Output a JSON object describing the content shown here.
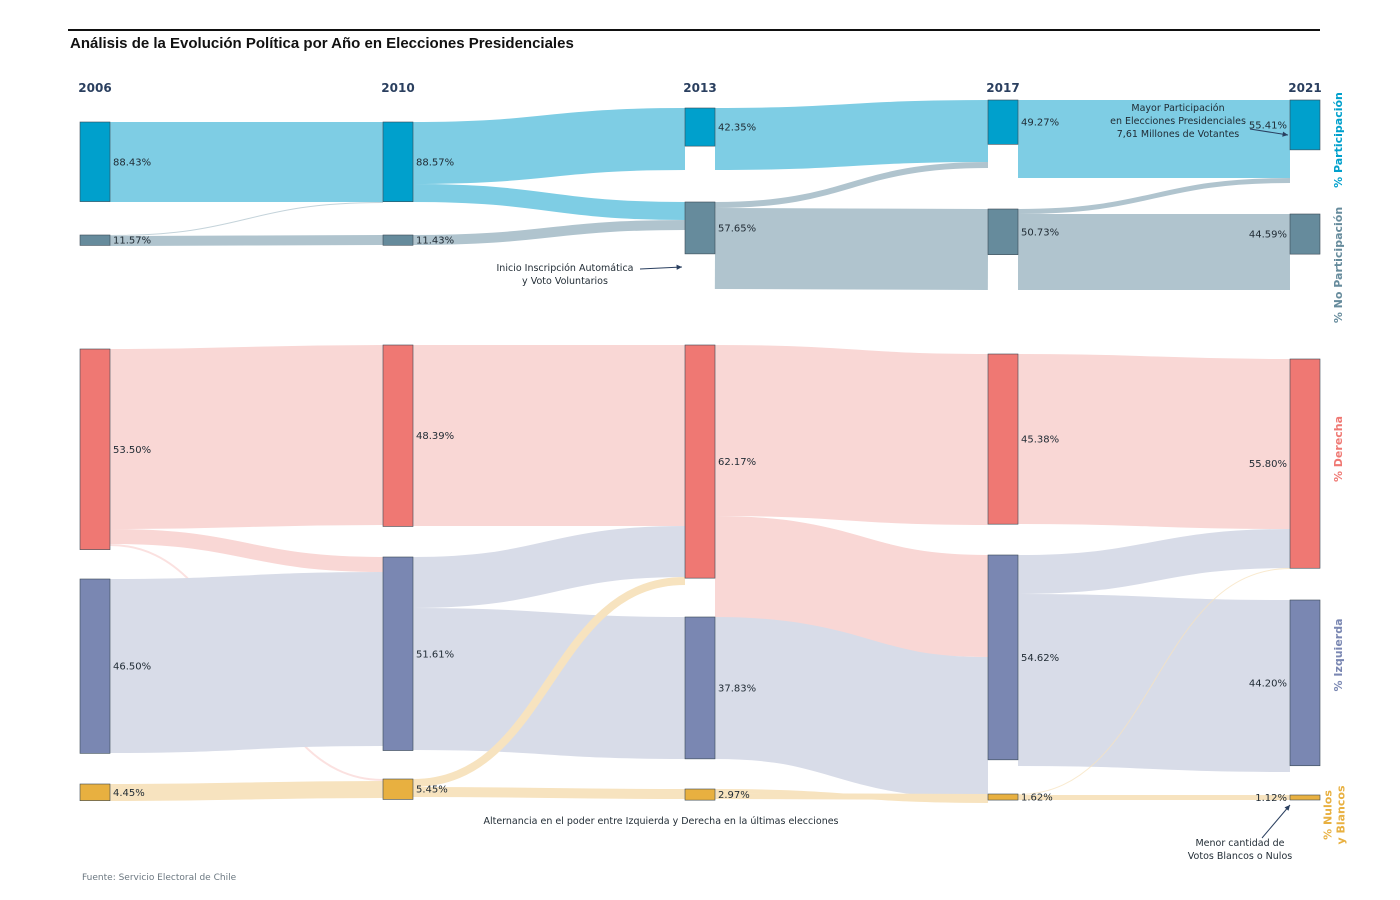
{
  "title": "Análisis de la Evolución Política por Año en Elecciones Presidenciales",
  "source": "Fuente: Servicio Electoral de Chile",
  "colors": {
    "participacion": "#00a0cc",
    "no_participacion": "#668b9c",
    "derecha": "#ef7873",
    "izquierda": "#7a87b2",
    "nulos": "#e8b040",
    "link_participacion": "#7ecde4",
    "link_no_participacion": "#b0c4ce",
    "link_derecha": "#f9d7d5",
    "link_izquierda": "#d8dce8",
    "link_nulos": "#f7e3bf"
  },
  "chart_data": {
    "type": "sankey",
    "title": "Análisis de la Evolución Política por Año en Elecciones Presidenciales",
    "years": [
      "2006",
      "2010",
      "2013",
      "2017",
      "2021"
    ],
    "groups": [
      {
        "name": "% Participación",
        "key": "participacion"
      },
      {
        "name": "% No Participación",
        "key": "no_participacion"
      },
      {
        "name": "% Derecha",
        "key": "derecha"
      },
      {
        "name": "% Izquierda",
        "key": "izquierda"
      },
      {
        "name": "% Nulos y Blancos",
        "key": "nulos"
      }
    ],
    "nodes": [
      {
        "id": "p06",
        "year": "2006",
        "category": "participacion",
        "value": 88.43,
        "label": "88.43%"
      },
      {
        "id": "n06",
        "year": "2006",
        "category": "no_participacion",
        "value": 11.57,
        "label": "11.57%"
      },
      {
        "id": "d06",
        "year": "2006",
        "category": "derecha",
        "value": 53.5,
        "label": "53.50%"
      },
      {
        "id": "i06",
        "year": "2006",
        "category": "izquierda",
        "value": 46.5,
        "label": "46.50%"
      },
      {
        "id": "b06",
        "year": "2006",
        "category": "nulos",
        "value": 4.45,
        "label": "4.45%"
      },
      {
        "id": "p10",
        "year": "2010",
        "category": "participacion",
        "value": 88.57,
        "label": "88.57%"
      },
      {
        "id": "n10",
        "year": "2010",
        "category": "no_participacion",
        "value": 11.43,
        "label": "11.43%"
      },
      {
        "id": "d10",
        "year": "2010",
        "category": "derecha",
        "value": 48.39,
        "label": "48.39%"
      },
      {
        "id": "i10",
        "year": "2010",
        "category": "izquierda",
        "value": 51.61,
        "label": "51.61%"
      },
      {
        "id": "b10",
        "year": "2010",
        "category": "nulos",
        "value": 5.45,
        "label": "5.45%"
      },
      {
        "id": "p13",
        "year": "2013",
        "category": "participacion",
        "value": 42.35,
        "label": "42.35%"
      },
      {
        "id": "n13",
        "year": "2013",
        "category": "no_participacion",
        "value": 57.65,
        "label": "57.65%"
      },
      {
        "id": "d13",
        "year": "2013",
        "category": "derecha",
        "value": 62.17,
        "label": "62.17%"
      },
      {
        "id": "i13",
        "year": "2013",
        "category": "izquierda",
        "value": 37.83,
        "label": "37.83%"
      },
      {
        "id": "b13",
        "year": "2013",
        "category": "nulos",
        "value": 2.97,
        "label": "2.97%"
      },
      {
        "id": "p17",
        "year": "2017",
        "category": "participacion",
        "value": 49.27,
        "label": "49.27%"
      },
      {
        "id": "n17",
        "year": "2017",
        "category": "no_participacion",
        "value": 50.73,
        "label": "50.73%"
      },
      {
        "id": "d17",
        "year": "2017",
        "category": "derecha",
        "value": 45.38,
        "label": "45.38%"
      },
      {
        "id": "i17",
        "year": "2017",
        "category": "izquierda",
        "value": 54.62,
        "label": "54.62%"
      },
      {
        "id": "b17",
        "year": "2017",
        "category": "nulos",
        "value": 1.62,
        "label": "1.62%"
      },
      {
        "id": "p21",
        "year": "2021",
        "category": "participacion",
        "value": 55.41,
        "label": "55.41%"
      },
      {
        "id": "n21",
        "year": "2021",
        "category": "no_participacion",
        "value": 44.59,
        "label": "44.59%"
      },
      {
        "id": "d21",
        "year": "2021",
        "category": "derecha",
        "value": 55.8,
        "label": "55.80%"
      },
      {
        "id": "i21",
        "year": "2021",
        "category": "izquierda",
        "value": 44.2,
        "label": "44.20%"
      },
      {
        "id": "b21",
        "year": "2021",
        "category": "nulos",
        "value": 1.12,
        "label": "1.12%"
      }
    ],
    "links": [
      {
        "source": "p06",
        "target": "p10",
        "category": "participacion"
      },
      {
        "source": "n06",
        "target": "p10",
        "category": "no_participacion"
      },
      {
        "source": "n06",
        "target": "n10",
        "category": "no_participacion"
      },
      {
        "source": "p10",
        "target": "p13",
        "category": "participacion"
      },
      {
        "source": "p10",
        "target": "n13",
        "category": "participacion"
      },
      {
        "source": "n10",
        "target": "n13",
        "category": "no_participacion"
      },
      {
        "source": "p13",
        "target": "p17",
        "category": "participacion"
      },
      {
        "source": "n13",
        "target": "p17",
        "category": "no_participacion"
      },
      {
        "source": "n13",
        "target": "n17",
        "category": "no_participacion"
      },
      {
        "source": "p17",
        "target": "p21",
        "category": "participacion"
      },
      {
        "source": "n17",
        "target": "p21",
        "category": "no_participacion"
      },
      {
        "source": "n17",
        "target": "n21",
        "category": "no_participacion"
      },
      {
        "source": "d06",
        "target": "d10",
        "category": "derecha"
      },
      {
        "source": "d06",
        "target": "i10",
        "category": "derecha"
      },
      {
        "source": "d06",
        "target": "b10",
        "category": "derecha"
      },
      {
        "source": "i06",
        "target": "i10",
        "category": "izquierda"
      },
      {
        "source": "b06",
        "target": "b10",
        "category": "nulos"
      },
      {
        "source": "d10",
        "target": "d13",
        "category": "derecha"
      },
      {
        "source": "i10",
        "target": "d13",
        "category": "izquierda"
      },
      {
        "source": "i10",
        "target": "i13",
        "category": "izquierda"
      },
      {
        "source": "b10",
        "target": "d13",
        "category": "nulos"
      },
      {
        "source": "b10",
        "target": "b13",
        "category": "nulos"
      },
      {
        "source": "d13",
        "target": "d17",
        "category": "derecha"
      },
      {
        "source": "d13",
        "target": "i17",
        "category": "derecha"
      },
      {
        "source": "i13",
        "target": "i17",
        "category": "izquierda"
      },
      {
        "source": "b13",
        "target": "i17",
        "category": "nulos"
      },
      {
        "source": "b13",
        "target": "b17",
        "category": "nulos"
      },
      {
        "source": "d17",
        "target": "d21",
        "category": "derecha"
      },
      {
        "source": "i17",
        "target": "d21",
        "category": "izquierda"
      },
      {
        "source": "i17",
        "target": "i21",
        "category": "izquierda"
      },
      {
        "source": "b17",
        "target": "d21",
        "category": "nulos"
      },
      {
        "source": "b17",
        "target": "b21",
        "category": "nulos"
      }
    ],
    "annotations": [
      {
        "id": "inscripcion",
        "lines": [
          "Inicio Inscripción Automática",
          "y Voto Voluntarios"
        ],
        "target": "n13"
      },
      {
        "id": "participacion_max",
        "lines": [
          "Mayor Participación",
          "en Elecciones Presidenciales",
          "7,61 Millones de Votantes"
        ],
        "target": "p21"
      },
      {
        "id": "nulos_min",
        "lines": [
          "Menor cantidad de",
          "Votos Blancos o Nulos"
        ],
        "target": "b21"
      },
      {
        "id": "alternancia",
        "lines": [
          "Alternancia en el poder entre Izquierda y Derecha en la últimas elecciones"
        ],
        "target": null
      }
    ],
    "side_labels": [
      {
        "lines": [
          "% Participación"
        ],
        "category": "participacion"
      },
      {
        "lines": [
          "% No Participación"
        ],
        "category": "no_participacion"
      },
      {
        "lines": [
          "% Derecha"
        ],
        "category": "derecha"
      },
      {
        "lines": [
          "% Izquierda"
        ],
        "category": "izquierda"
      },
      {
        "lines": [
          "% Nulos",
          "y Blancos"
        ],
        "category": "nulos"
      }
    ]
  }
}
